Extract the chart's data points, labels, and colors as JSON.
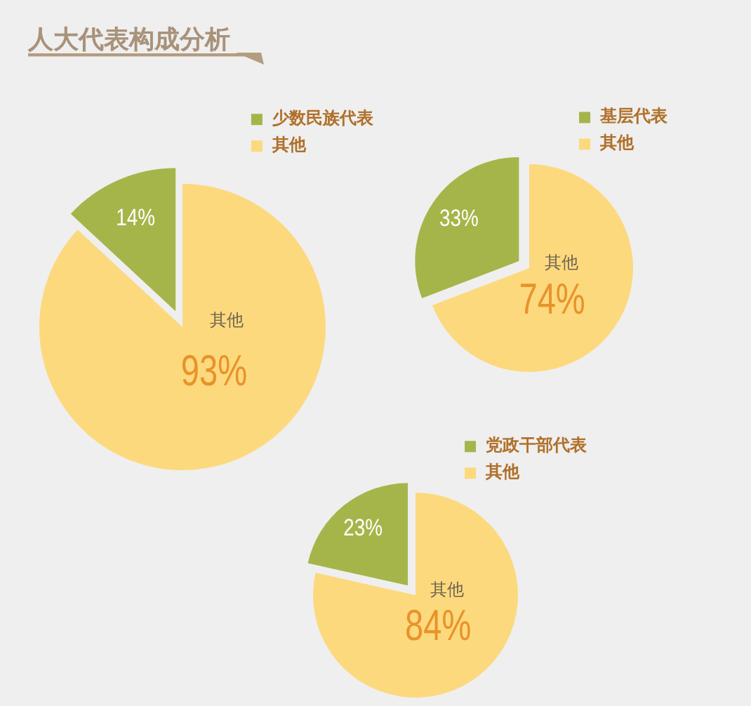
{
  "chart_data": [
    {
      "type": "pie",
      "title": "人大代表构成分析",
      "categories": [
        "少数民族代表",
        "其他"
      ],
      "values": [
        14,
        93
      ],
      "colors": [
        "#a6b54a",
        "#fdd97e"
      ],
      "value_labels": [
        "14%",
        "93%"
      ],
      "legend": "top right"
    },
    {
      "type": "pie",
      "categories": [
        "基层代表",
        "其他"
      ],
      "values": [
        33,
        74
      ],
      "colors": [
        "#a6b54a",
        "#fdd97e"
      ],
      "value_labels": [
        "33%",
        "74%"
      ],
      "legend": "top right"
    },
    {
      "type": "pie",
      "categories": [
        "党政干部代表",
        "其他"
      ],
      "values": [
        23,
        84
      ],
      "colors": [
        "#a6b54a",
        "#fdd97e"
      ],
      "value_labels": [
        "23%",
        "84%"
      ],
      "legend": "top right"
    }
  ]
}
